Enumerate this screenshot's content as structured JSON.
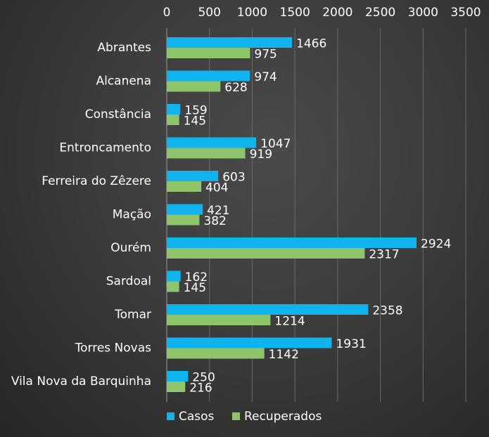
{
  "chart_data": {
    "type": "bar",
    "orientation": "horizontal",
    "title": "",
    "xlabel": "",
    "ylabel": "",
    "xlim": [
      0,
      3500
    ],
    "x_ticks": [
      0,
      500,
      1000,
      1500,
      2000,
      2500,
      3000,
      3500
    ],
    "x_axis_position": "top",
    "grid": true,
    "legend_position": "bottom",
    "categories": [
      "Abrantes",
      "Alcanena",
      "Constância",
      "Entroncamento",
      "Ferreira do Zêzere",
      "Mação",
      "Ourém",
      "Sardoal",
      "Tomar",
      "Torres Novas",
      "Vila Nova da Barquinha"
    ],
    "series": [
      {
        "name": "Casos",
        "color": "#0fb4ee",
        "values": [
          1466,
          974,
          159,
          1047,
          603,
          421,
          2924,
          162,
          2358,
          1931,
          250
        ]
      },
      {
        "name": "Recuperados",
        "color": "#8ec56b",
        "values": [
          975,
          628,
          145,
          919,
          404,
          382,
          2317,
          145,
          1214,
          1142,
          216
        ]
      }
    ]
  }
}
